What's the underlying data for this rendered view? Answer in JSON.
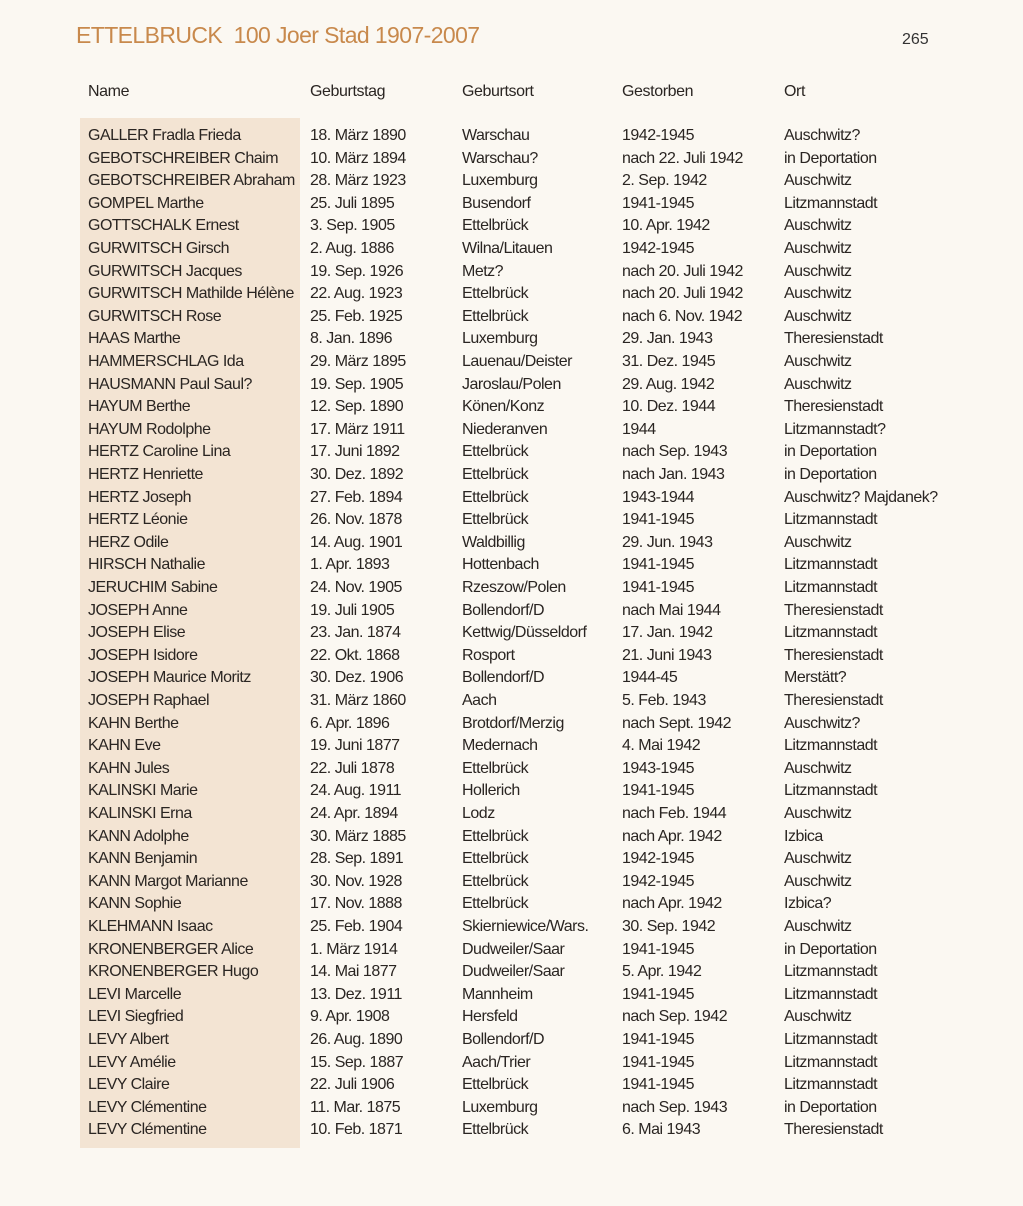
{
  "header": {
    "title": "ETTELBRUCK  100 Joer Stad 1907-2007",
    "page_number": "265"
  },
  "colors": {
    "title": "#c8894c",
    "name_band": "#f3e4d3"
  },
  "table": {
    "columns": [
      "Name",
      "Geburtstag",
      "Geburtsort",
      "Gestorben",
      "Ort"
    ],
    "rows": [
      [
        "GALLER Fradla Frieda",
        "18. März 1890",
        "Warschau",
        "1942-1945",
        "Auschwitz?"
      ],
      [
        "GEBOTSCHREIBER Chaim",
        "10. März 1894",
        "Warschau?",
        "nach 22. Juli 1942",
        "in Deportation"
      ],
      [
        "GEBOTSCHREIBER Abraham",
        "28. März 1923",
        "Luxemburg",
        "2. Sep. 1942",
        "Auschwitz"
      ],
      [
        "GOMPEL Marthe",
        "25. Juli 1895",
        "Busendorf",
        "1941-1945",
        "Litzmannstadt"
      ],
      [
        "GOTTSCHALK Ernest",
        "3. Sep. 1905",
        "Ettelbrück",
        "10. Apr. 1942",
        "Auschwitz"
      ],
      [
        "GURWITSCH Girsch",
        "2. Aug. 1886",
        "Wilna/Litauen",
        "1942-1945",
        "Auschwitz"
      ],
      [
        "GURWITSCH Jacques",
        "19. Sep. 1926",
        "Metz?",
        "nach 20. Juli 1942",
        "Auschwitz"
      ],
      [
        "GURWITSCH Mathilde Hélène",
        "22. Aug. 1923",
        "Ettelbrück",
        "nach 20. Juli 1942",
        "Auschwitz"
      ],
      [
        "GURWITSCH Rose",
        "25. Feb. 1925",
        "Ettelbrück",
        "nach 6. Nov. 1942",
        "Auschwitz"
      ],
      [
        "HAAS Marthe",
        "8. Jan. 1896",
        "Luxemburg",
        "29. Jan. 1943",
        "Theresienstadt"
      ],
      [
        "HAMMERSCHLAG Ida",
        "29. März 1895",
        "Lauenau/Deister",
        "31. Dez. 1945",
        "Auschwitz"
      ],
      [
        "HAUSMANN Paul Saul?",
        "19. Sep. 1905",
        "Jaroslau/Polen",
        "29. Aug. 1942",
        "Auschwitz"
      ],
      [
        "HAYUM Berthe",
        "12. Sep. 1890",
        "Könen/Konz",
        "10. Dez. 1944",
        "Theresienstadt"
      ],
      [
        "HAYUM Rodolphe",
        "17. März 1911",
        "Niederanven",
        "1944",
        "Litzmannstadt?"
      ],
      [
        "HERTZ Caroline Lina",
        "17. Juni 1892",
        "Ettelbrück",
        "nach Sep. 1943",
        "in Deportation"
      ],
      [
        "HERTZ Henriette",
        "30. Dez. 1892",
        "Ettelbrück",
        "nach Jan. 1943",
        "in Deportation"
      ],
      [
        "HERTZ Joseph",
        "27. Feb. 1894",
        "Ettelbrück",
        "1943-1944",
        "Auschwitz? Majdanek?"
      ],
      [
        "HERTZ Léonie",
        "26. Nov. 1878",
        "Ettelbrück",
        "1941-1945",
        "Litzmannstadt"
      ],
      [
        "HERZ Odile",
        "14. Aug. 1901",
        "Waldbillig",
        "29. Jun. 1943",
        "Auschwitz"
      ],
      [
        "HIRSCH Nathalie",
        "1. Apr. 1893",
        "Hottenbach",
        "1941-1945",
        "Litzmannstadt"
      ],
      [
        "JERUCHIM Sabine",
        "24. Nov. 1905",
        "Rzeszow/Polen",
        "1941-1945",
        "Litzmannstadt"
      ],
      [
        "JOSEPH Anne",
        "19. Juli 1905",
        "Bollendorf/D",
        "nach Mai 1944",
        "Theresienstadt"
      ],
      [
        "JOSEPH Elise",
        "23. Jan. 1874",
        "Kettwig/Düsseldorf",
        "17. Jan. 1942",
        "Litzmannstadt"
      ],
      [
        "JOSEPH Isidore",
        "22. Okt. 1868",
        "Rosport",
        "21. Juni 1943",
        "Theresienstadt"
      ],
      [
        "JOSEPH Maurice Moritz",
        "30. Dez. 1906",
        "Bollendorf/D",
        "1944-45",
        "Merstätt?"
      ],
      [
        "JOSEPH Raphael",
        "31. März 1860",
        "Aach",
        "5. Feb. 1943",
        "Theresienstadt"
      ],
      [
        "KAHN Berthe",
        "6. Apr. 1896",
        "Brotdorf/Merzig",
        "nach Sept. 1942",
        "Auschwitz?"
      ],
      [
        "KAHN Eve",
        "19. Juni 1877",
        "Medernach",
        "4. Mai 1942",
        "Litzmannstadt"
      ],
      [
        "KAHN Jules",
        "22. Juli 1878",
        "Ettelbrück",
        "1943-1945",
        "Auschwitz"
      ],
      [
        "KALINSKI Marie",
        "24. Aug. 1911",
        "Hollerich",
        "1941-1945",
        "Litzmannstadt"
      ],
      [
        "KALINSKI Erna",
        "24. Apr. 1894",
        "Lodz",
        "nach Feb. 1944",
        "Auschwitz"
      ],
      [
        "KANN Adolphe",
        "30. März 1885",
        "Ettelbrück",
        "nach Apr. 1942",
        "Izbica"
      ],
      [
        "KANN Benjamin",
        "28. Sep. 1891",
        "Ettelbrück",
        "1942-1945",
        "Auschwitz"
      ],
      [
        "KANN Margot Marianne",
        "30. Nov. 1928",
        "Ettelbrück",
        "1942-1945",
        "Auschwitz"
      ],
      [
        "KANN Sophie",
        "17. Nov. 1888",
        "Ettelbrück",
        "nach Apr. 1942",
        "Izbica?"
      ],
      [
        "KLEHMANN Isaac",
        "25. Feb. 1904",
        "Skierniewice/Wars.",
        "30. Sep. 1942",
        "Auschwitz"
      ],
      [
        "KRONENBERGER Alice",
        "1. März 1914",
        "Dudweiler/Saar",
        "1941-1945",
        "in Deportation"
      ],
      [
        "KRONENBERGER Hugo",
        "14. Mai 1877",
        "Dudweiler/Saar",
        "5. Apr. 1942",
        "Litzmannstadt"
      ],
      [
        "LEVI Marcelle",
        "13. Dez. 1911",
        "Mannheim",
        "1941-1945",
        "Litzmannstadt"
      ],
      [
        "LEVI Siegfried",
        "9. Apr. 1908",
        "Hersfeld",
        "nach Sep. 1942",
        "Auschwitz"
      ],
      [
        "LEVY Albert",
        "26. Aug. 1890",
        "Bollendorf/D",
        "1941-1945",
        "Litzmannstadt"
      ],
      [
        "LEVY Amélie",
        "15. Sep. 1887",
        "Aach/Trier",
        "1941-1945",
        "Litzmannstadt"
      ],
      [
        "LEVY Claire",
        "22. Juli 1906",
        "Ettelbrück",
        "1941-1945",
        "Litzmannstadt"
      ],
      [
        "LEVY Clémentine",
        "11. Mar. 1875",
        "Luxemburg",
        "nach Sep. 1943",
        "in Deportation"
      ],
      [
        "LEVY Clémentine",
        "10. Feb. 1871",
        "Ettelbrück",
        "6. Mai 1943",
        "Theresienstadt"
      ]
    ]
  }
}
